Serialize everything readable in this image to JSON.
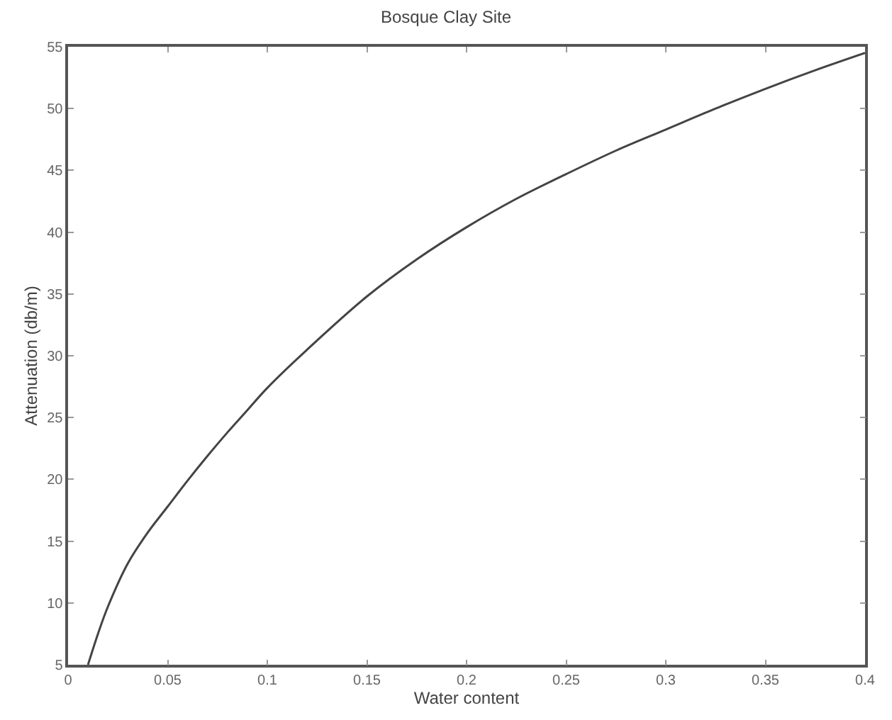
{
  "chart_data": {
    "type": "line",
    "title": "Bosque Clay Site",
    "xlabel": "Water content",
    "ylabel": "Attenuation (db/m)",
    "x": [
      0.01,
      0.015,
      0.02,
      0.03,
      0.04,
      0.05,
      0.06,
      0.07,
      0.08,
      0.09,
      0.1,
      0.12,
      0.15,
      0.175,
      0.2,
      0.225,
      0.25,
      0.275,
      0.3,
      0.325,
      0.35,
      0.375,
      0.4
    ],
    "series": [
      {
        "color": "#444444",
        "values": [
          5,
          7.5,
          9.7,
          13.2,
          15.7,
          17.8,
          19.9,
          21.9,
          23.8,
          25.6,
          27.4,
          30.5,
          34.8,
          37.8,
          40.4,
          42.7,
          44.7,
          46.6,
          48.3,
          50,
          51.6,
          53.1,
          54.5
        ]
      }
    ],
    "xlim": [
      0,
      0.4
    ],
    "xticks": [
      0,
      0.05,
      0.1,
      0.15,
      0.2,
      0.25,
      0.3,
      0.35,
      0.4
    ],
    "ylim": [
      5,
      55
    ],
    "yticks": [
      5,
      10,
      15,
      20,
      25,
      30,
      35,
      40,
      45,
      50,
      55
    ],
    "grid": false,
    "marker": "none",
    "line_style": "solid"
  }
}
